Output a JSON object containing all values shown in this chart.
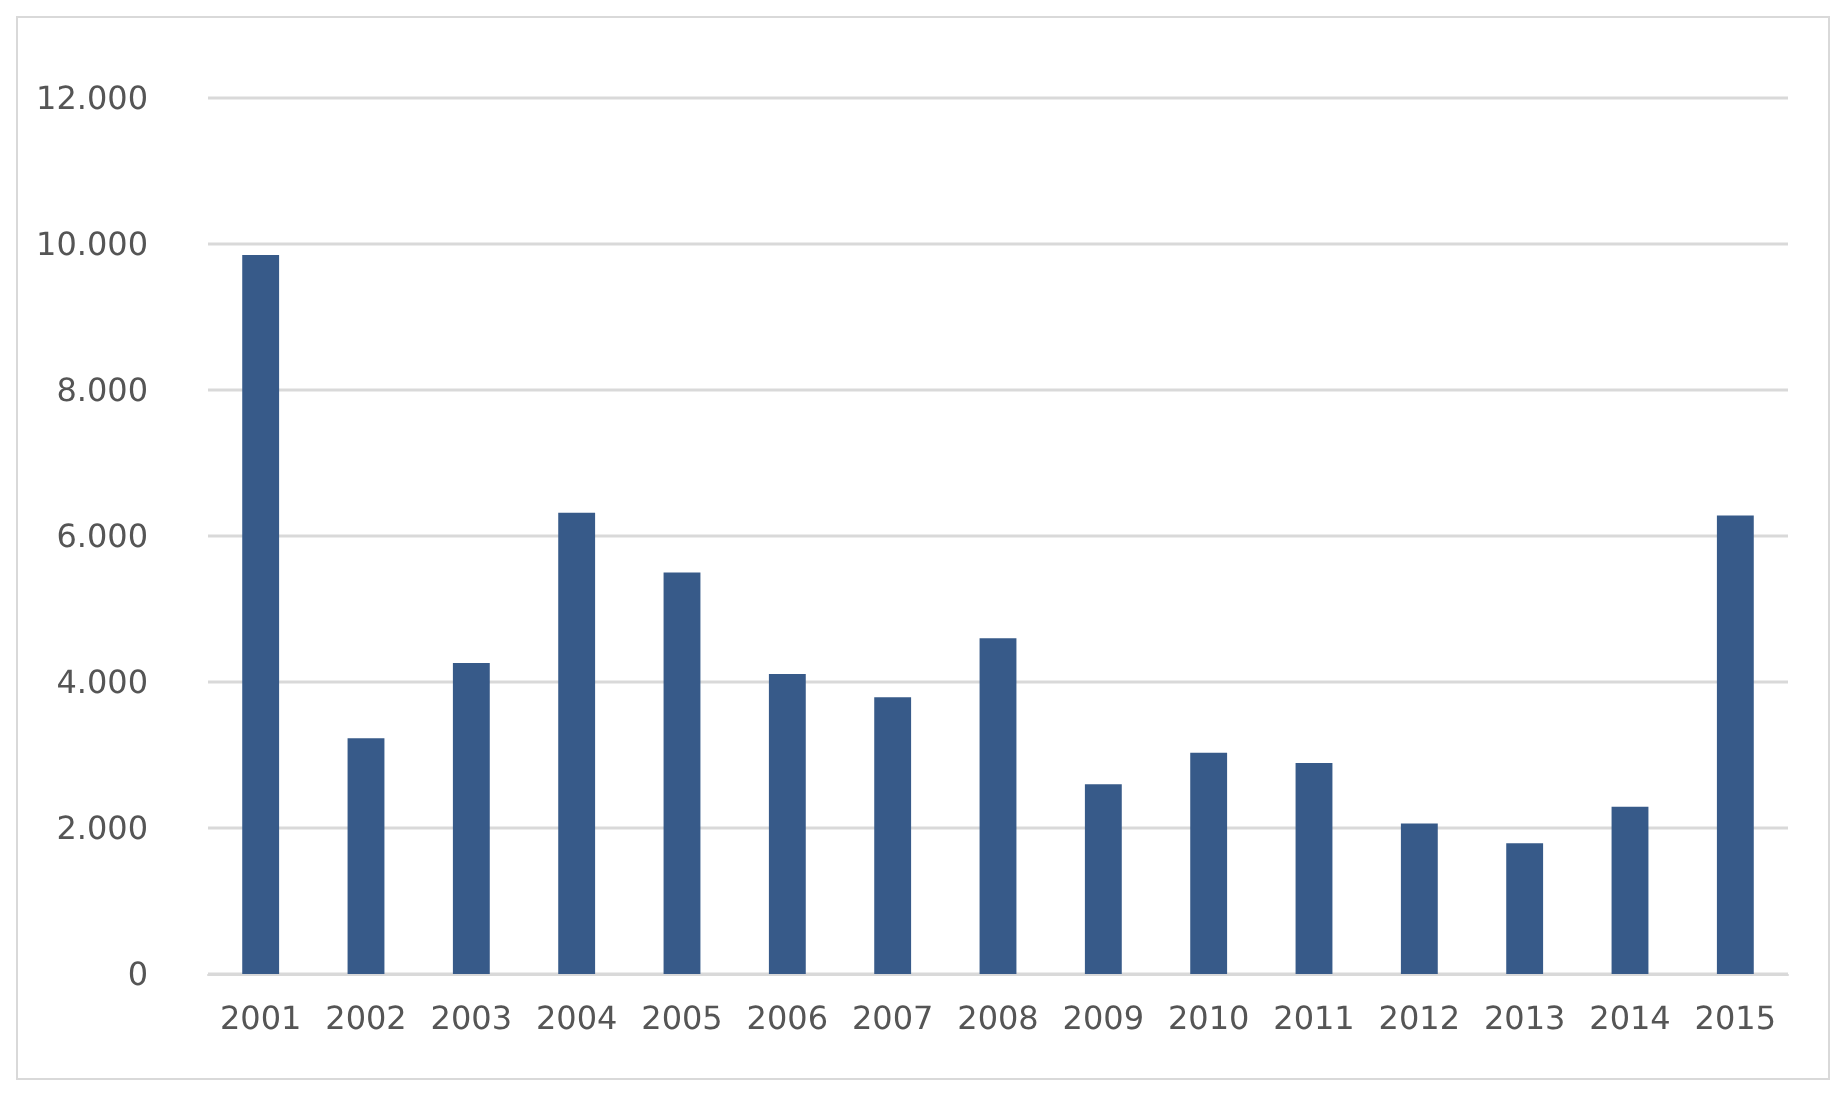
{
  "chart_data": {
    "type": "bar",
    "categories": [
      "2001",
      "2002",
      "2003",
      "2004",
      "2005",
      "2006",
      "2007",
      "2008",
      "2009",
      "2010",
      "2011",
      "2012",
      "2013",
      "2014",
      "2015"
    ],
    "values": [
      9850,
      3230,
      4260,
      6320,
      5500,
      4110,
      3790,
      4600,
      2600,
      3030,
      2890,
      2060,
      1790,
      2290,
      6280
    ],
    "color": "#375a89",
    "ylim": [
      0,
      12000
    ],
    "yticks": [
      {
        "value": 0,
        "label": "0"
      },
      {
        "value": 2000,
        "label": "2.000"
      },
      {
        "value": 4000,
        "label": "4.000"
      },
      {
        "value": 6000,
        "label": "6.000"
      },
      {
        "value": 8000,
        "label": "8.000"
      },
      {
        "value": 10000,
        "label": "10.000"
      },
      {
        "value": 12000,
        "label": "12.000"
      }
    ],
    "grid": "y"
  }
}
